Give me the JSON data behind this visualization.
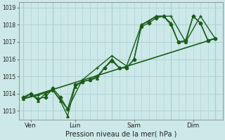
{
  "xlabel": "Pression niveau de la mer( hPa )",
  "background_color": "#cce8e8",
  "grid_color": "#aad0d0",
  "line_color": "#1a5c1a",
  "ylim": [
    1012.5,
    1019.3
  ],
  "yticks": [
    1013,
    1014,
    1015,
    1016,
    1017,
    1018,
    1019
  ],
  "day_positions": [
    0.5,
    3.5,
    7.5,
    11.5
  ],
  "day_labels": [
    "Ven",
    "Lun",
    "Sam",
    "Dim"
  ],
  "day_vlines": [
    0.0,
    2.0,
    6.0,
    10.0,
    13.0
  ],
  "num_cols": 14,
  "lines": [
    {
      "x": [
        0,
        0.5,
        1.0,
        1.5,
        2.0,
        2.5,
        3.0,
        3.5,
        4.0,
        4.5,
        5.0,
        5.5,
        6.0,
        6.5,
        7.0,
        7.5,
        8.0,
        8.5,
        9.0,
        9.5,
        10.0,
        10.5,
        11.0,
        11.5,
        12.0,
        12.5,
        13.0
      ],
      "y": [
        1013.8,
        1014.0,
        1013.7,
        1013.8,
        1014.3,
        1013.8,
        1013.1,
        1014.5,
        1014.7,
        1014.8,
        1015.0,
        1015.5,
        1015.9,
        1015.5,
        1015.5,
        1016.0,
        1017.9,
        1018.1,
        1018.4,
        1018.5,
        1018.0,
        1017.0,
        1017.1,
        1018.5,
        1018.1,
        1017.1,
        1017.2
      ],
      "marker": "D",
      "markersize": 2.5,
      "linewidth": 1.0
    },
    {
      "x": [
        0,
        0.5,
        1.0,
        1.5,
        2.0,
        2.5,
        3.0,
        3.5,
        4.0,
        4.5,
        5.0,
        5.5,
        6.0,
        6.5,
        7.0,
        7.5,
        8.0,
        8.5,
        9.0,
        9.5,
        10.0,
        10.5,
        11.0,
        11.5,
        12.0,
        12.5,
        13.0
      ],
      "y": [
        1013.7,
        1014.0,
        1013.6,
        1014.0,
        1014.2,
        1013.6,
        1012.7,
        1014.4,
        1014.7,
        1014.8,
        1014.9,
        1015.5,
        1016.0,
        1015.5,
        1015.5,
        1016.0,
        1018.0,
        1018.2,
        1018.5,
        1018.5,
        1018.1,
        1017.0,
        1017.0,
        1018.5,
        1018.1,
        1017.1,
        1017.2
      ],
      "marker": "^",
      "markersize": 2.5,
      "linewidth": 1.0
    },
    {
      "x": [
        0,
        1.0,
        2.0,
        3.0,
        4.0,
        5.0,
        6.0,
        7.0,
        8.0,
        9.0,
        10.0,
        11.0,
        12.0,
        13.0
      ],
      "y": [
        1013.7,
        1013.9,
        1014.2,
        1013.1,
        1014.8,
        1015.5,
        1016.2,
        1015.6,
        1018.0,
        1018.5,
        1018.5,
        1017.0,
        1018.5,
        1017.2
      ],
      "marker": "+",
      "markersize": 3.5,
      "linewidth": 1.0
    },
    {
      "x": [
        0,
        13.0
      ],
      "y": [
        1013.7,
        1017.2
      ],
      "marker": null,
      "markersize": 0,
      "linewidth": 1.2
    }
  ]
}
